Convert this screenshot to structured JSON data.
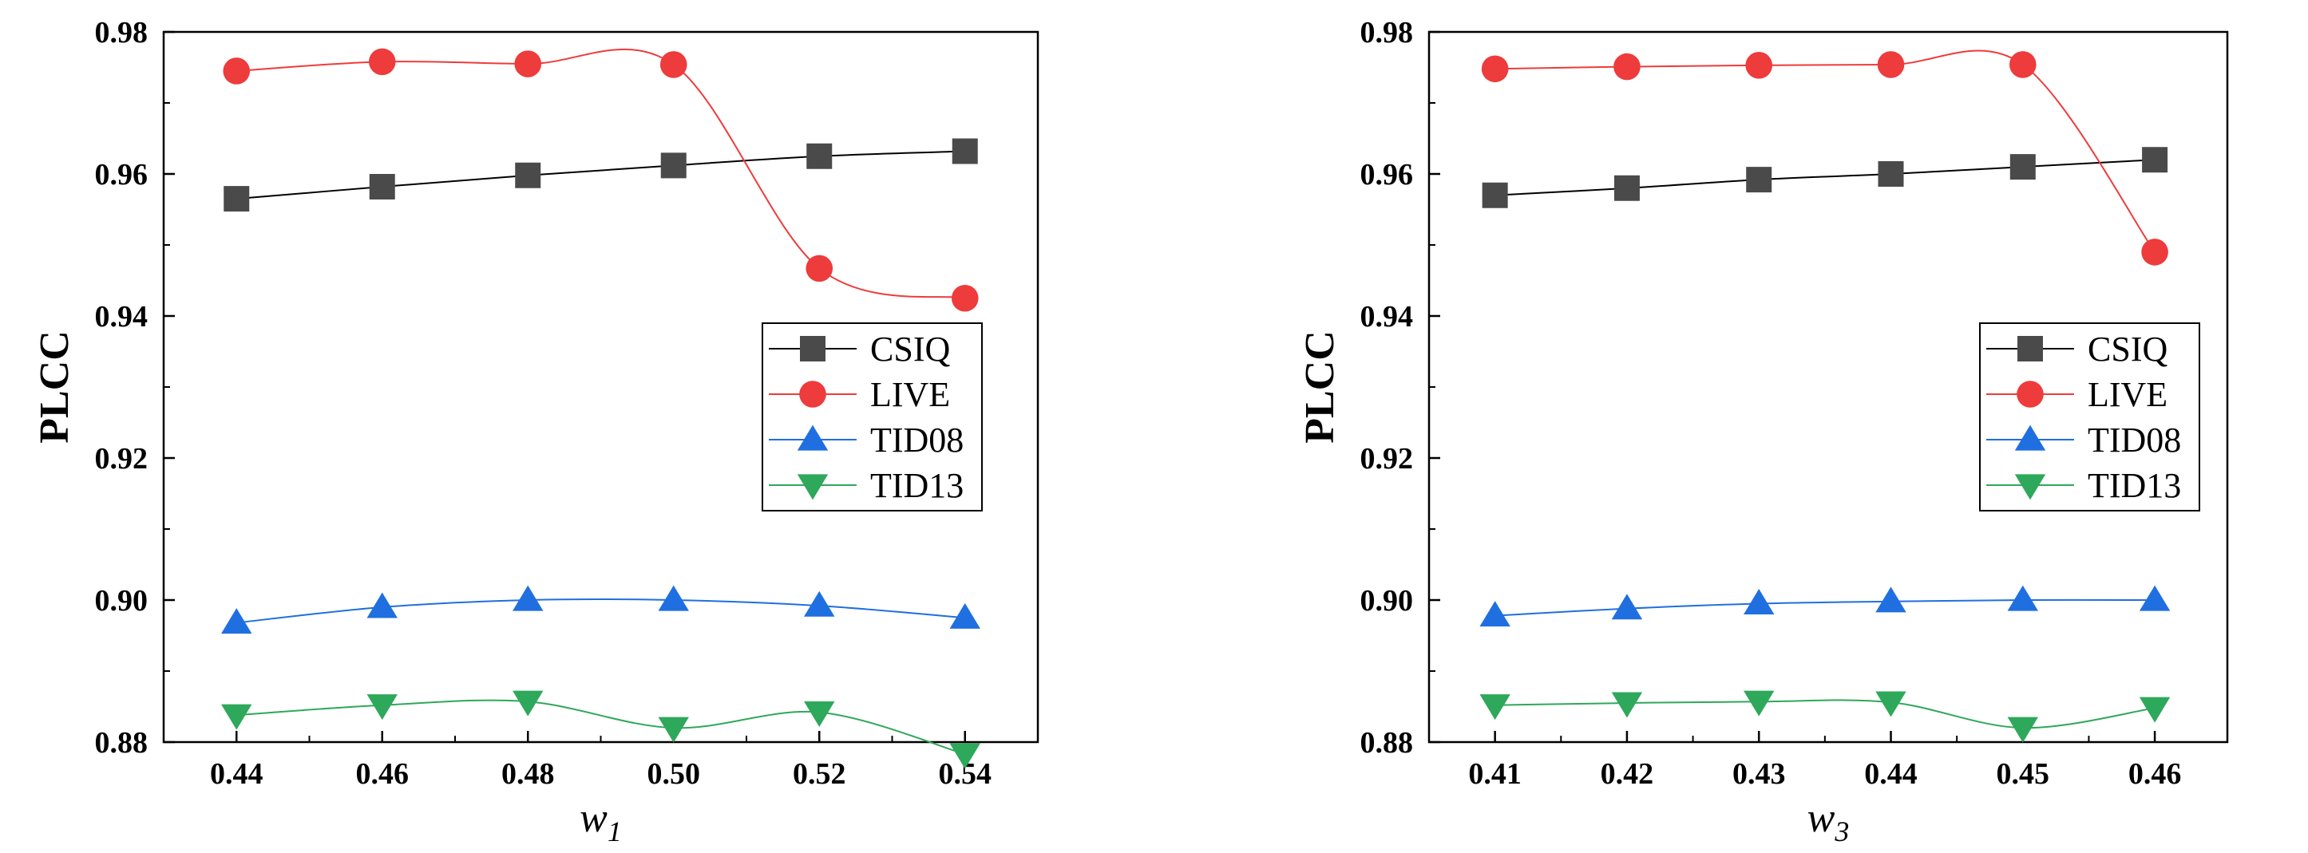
{
  "chart_data": [
    {
      "type": "line",
      "xlabel": "w",
      "xlabel_sub": "1",
      "ylabel": "PLCC",
      "x": [
        "0.44",
        "0.46",
        "0.48",
        "0.50",
        "0.52",
        "0.54"
      ],
      "xlim": [
        0.43,
        0.55
      ],
      "ylim": [
        0.88,
        0.98
      ],
      "yticks": [
        "0.88",
        "0.90",
        "0.92",
        "0.94",
        "0.96",
        "0.98"
      ],
      "grid": false,
      "legend": "right, middle",
      "series": [
        {
          "name": "CSIQ",
          "color": "#4a4a4a",
          "line_color": "#000000",
          "marker": "square",
          "values": [
            0.9565,
            0.9582,
            0.9598,
            0.9612,
            0.9625,
            0.9632
          ]
        },
        {
          "name": "LIVE",
          "color": "#ee3b3b",
          "line_color": "#ee3b3b",
          "marker": "circle",
          "values": [
            0.9745,
            0.9758,
            0.9755,
            0.9754,
            0.9467,
            0.9425
          ]
        },
        {
          "name": "TID08",
          "color": "#1f6fe0",
          "line_color": "#1f6fe0",
          "marker": "triangle-up",
          "values": [
            0.8968,
            0.899,
            0.9,
            0.9,
            0.8992,
            0.8975
          ]
        },
        {
          "name": "TID13",
          "color": "#2ea85a",
          "line_color": "#2ea85a",
          "marker": "triangle-down",
          "values": [
            0.8838,
            0.8852,
            0.8857,
            0.882,
            0.8842,
            0.8783
          ]
        }
      ]
    },
    {
      "type": "line",
      "xlabel": "w",
      "xlabel_sub": "3",
      "ylabel": "PLCC",
      "x": [
        "0.41",
        "0.42",
        "0.43",
        "0.44",
        "0.45",
        "0.46"
      ],
      "xlim": [
        0.405,
        0.4655
      ],
      "ylim": [
        0.88,
        0.98
      ],
      "yticks": [
        "0.88",
        "0.90",
        "0.92",
        "0.94",
        "0.96",
        "0.98"
      ],
      "grid": false,
      "legend": "right, middle",
      "series": [
        {
          "name": "CSIQ",
          "color": "#4a4a4a",
          "line_color": "#000000",
          "marker": "square",
          "values": [
            0.957,
            0.958,
            0.9592,
            0.96,
            0.961,
            0.962
          ]
        },
        {
          "name": "LIVE",
          "color": "#ee3b3b",
          "line_color": "#ee3b3b",
          "marker": "circle",
          "values": [
            0.9748,
            0.9751,
            0.9753,
            0.9754,
            0.9754,
            0.949
          ]
        },
        {
          "name": "TID08",
          "color": "#1f6fe0",
          "line_color": "#1f6fe0",
          "marker": "triangle-up",
          "values": [
            0.8978,
            0.8988,
            0.8995,
            0.8998,
            0.9,
            0.9
          ]
        },
        {
          "name": "TID13",
          "color": "#2ea85a",
          "line_color": "#2ea85a",
          "marker": "triangle-down",
          "values": [
            0.8852,
            0.8855,
            0.8857,
            0.8856,
            0.882,
            0.8848
          ]
        }
      ]
    }
  ]
}
